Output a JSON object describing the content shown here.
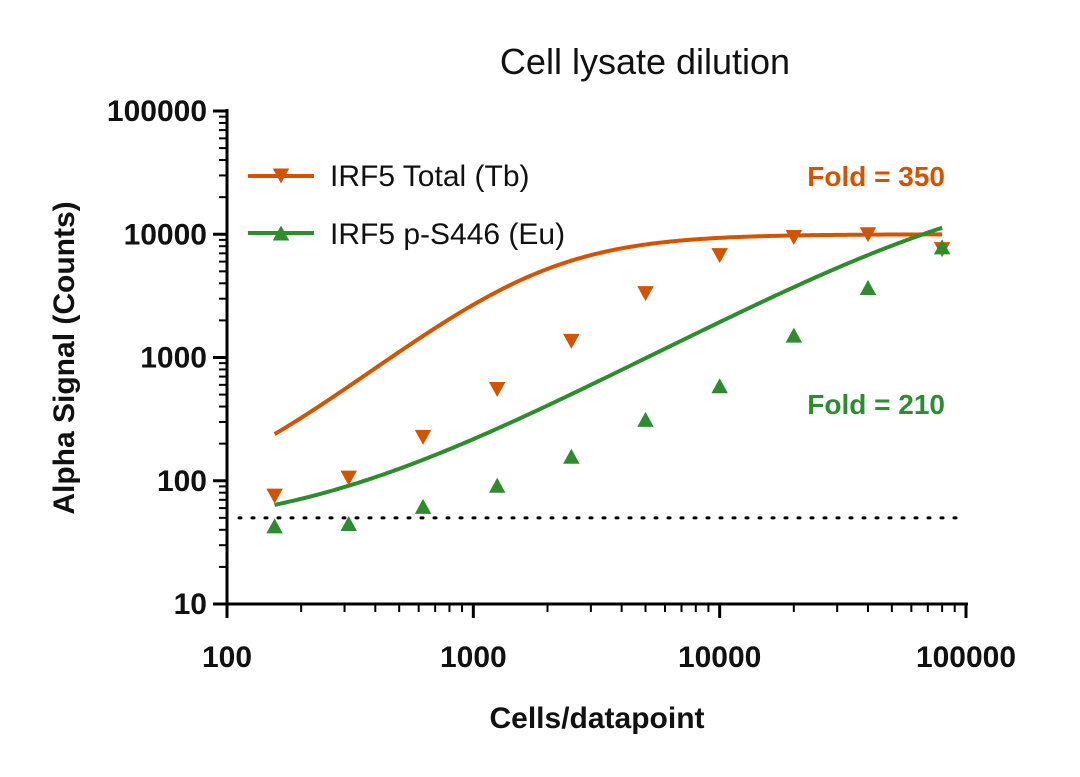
{
  "chart_data": {
    "type": "scatter",
    "title": "Cell lysate dilution",
    "xlabel": "Cells/datapoint",
    "ylabel": "Alpha Signal (Counts)",
    "xscale": "log",
    "yscale": "log",
    "xlim": [
      100,
      100000
    ],
    "ylim": [
      10,
      100000
    ],
    "x_ticks": [
      "100",
      "1000",
      "10000",
      "100000"
    ],
    "y_ticks": [
      "10",
      "100",
      "1000",
      "10000",
      "100000"
    ],
    "grid": false,
    "legend_position": "top-left",
    "baseline": {
      "y": 50,
      "style": "dotted"
    },
    "series": [
      {
        "name": "IRF5 Total (Tb)",
        "color": "#D35400",
        "marker": "triangle-down",
        "x": [
          156,
          312,
          625,
          1250,
          2500,
          5000,
          10000,
          20000,
          40000,
          80000
        ],
        "y": [
          75,
          105,
          225,
          550,
          1350,
          3300,
          6700,
          9400,
          9900,
          7500
        ],
        "fit": {
          "bottom": 60,
          "top": 10000,
          "ec50": 1900,
          "hill": 1.6
        }
      },
      {
        "name": "IRF5 p-S446 (Eu)",
        "color": "#2E8B2E",
        "marker": "triangle-up",
        "x": [
          156,
          312,
          625,
          1250,
          2500,
          5000,
          10000,
          20000,
          40000,
          80000
        ],
        "y": [
          43,
          45,
          62,
          92,
          158,
          315,
          590,
          1520,
          3700,
          7900
        ],
        "fit": {
          "bottom": 38,
          "top": 30000,
          "ec50": 130000,
          "hill": 1.05
        }
      }
    ],
    "annotations": [
      {
        "text": "Fold = 350",
        "color": "#D35400"
      },
      {
        "text": "Fold = 210",
        "color": "#2E8B2E"
      }
    ]
  }
}
